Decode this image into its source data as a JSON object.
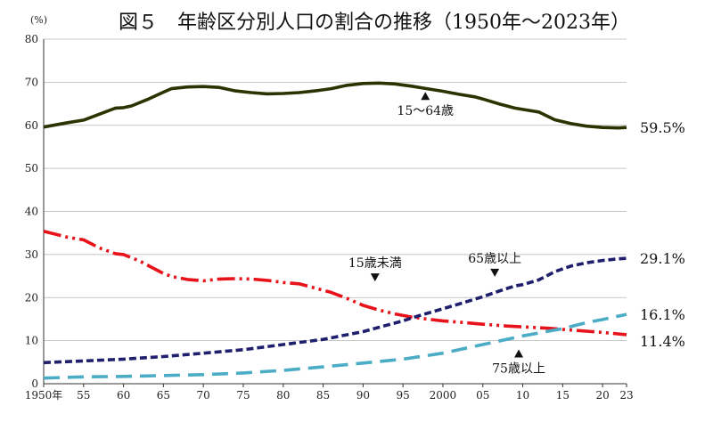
{
  "chart_data": {
    "type": "line",
    "title": "図５　年齢区分別人口の割合の推移（1950年～2023年）",
    "y_unit": "(%)",
    "ylim": [
      0,
      80
    ],
    "y_ticks": [
      0,
      10,
      20,
      30,
      40,
      50,
      60,
      70,
      80
    ],
    "x_range": [
      1950,
      2023
    ],
    "x_ticks": [
      {
        "x": 1950,
        "label": "1950年"
      },
      {
        "x": 1955,
        "label": "55"
      },
      {
        "x": 1960,
        "label": "60"
      },
      {
        "x": 1965,
        "label": "65"
      },
      {
        "x": 1970,
        "label": "70"
      },
      {
        "x": 1975,
        "label": "75"
      },
      {
        "x": 1980,
        "label": "80"
      },
      {
        "x": 1985,
        "label": "85"
      },
      {
        "x": 1990,
        "label": "90"
      },
      {
        "x": 1995,
        "label": "95"
      },
      {
        "x": 2000,
        "label": "2000"
      },
      {
        "x": 2005,
        "label": "05"
      },
      {
        "x": 2010,
        "label": "10"
      },
      {
        "x": 2015,
        "label": "15"
      },
      {
        "x": 2020,
        "label": "20"
      },
      {
        "x": 2023,
        "label": "23"
      }
    ],
    "grid": "horizontal",
    "series": [
      {
        "name": "15～64歳",
        "color": "#2b3300",
        "dash": "solid",
        "end_label": "59.5%",
        "points": [
          [
            1950,
            59.6
          ],
          [
            1953,
            60.6
          ],
          [
            1955,
            61.2
          ],
          [
            1957,
            62.6
          ],
          [
            1959,
            64.0
          ],
          [
            1960,
            64.1
          ],
          [
            1961,
            64.5
          ],
          [
            1963,
            66.0
          ],
          [
            1965,
            67.7
          ],
          [
            1966,
            68.5
          ],
          [
            1968,
            68.9
          ],
          [
            1970,
            69.0
          ],
          [
            1972,
            68.8
          ],
          [
            1974,
            68.0
          ],
          [
            1976,
            67.6
          ],
          [
            1978,
            67.3
          ],
          [
            1980,
            67.4
          ],
          [
            1982,
            67.6
          ],
          [
            1984,
            68.0
          ],
          [
            1986,
            68.5
          ],
          [
            1988,
            69.3
          ],
          [
            1990,
            69.7
          ],
          [
            1992,
            69.8
          ],
          [
            1994,
            69.6
          ],
          [
            1996,
            69.1
          ],
          [
            1998,
            68.5
          ],
          [
            2000,
            67.9
          ],
          [
            2002,
            67.2
          ],
          [
            2004,
            66.6
          ],
          [
            2005,
            66.1
          ],
          [
            2007,
            65.0
          ],
          [
            2009,
            64.0
          ],
          [
            2010,
            63.7
          ],
          [
            2012,
            63.1
          ],
          [
            2014,
            61.3
          ],
          [
            2016,
            60.4
          ],
          [
            2018,
            59.8
          ],
          [
            2020,
            59.5
          ],
          [
            2022,
            59.4
          ],
          [
            2023,
            59.5
          ]
        ]
      },
      {
        "name": "15歳未満",
        "color": "#e8121b",
        "dash": "dashdotdot",
        "end_label": "11.4%",
        "points": [
          [
            1950,
            35.4
          ],
          [
            1953,
            34.0
          ],
          [
            1955,
            33.4
          ],
          [
            1957,
            31.5
          ],
          [
            1959,
            30.2
          ],
          [
            1960,
            30.0
          ],
          [
            1962,
            28.5
          ],
          [
            1965,
            25.6
          ],
          [
            1966,
            24.9
          ],
          [
            1968,
            24.2
          ],
          [
            1970,
            23.9
          ],
          [
            1972,
            24.3
          ],
          [
            1974,
            24.4
          ],
          [
            1976,
            24.3
          ],
          [
            1978,
            24.0
          ],
          [
            1980,
            23.5
          ],
          [
            1982,
            23.2
          ],
          [
            1984,
            22.2
          ],
          [
            1986,
            21.2
          ],
          [
            1988,
            19.8
          ],
          [
            1990,
            18.2
          ],
          [
            1992,
            17.1
          ],
          [
            1994,
            16.2
          ],
          [
            1996,
            15.5
          ],
          [
            1998,
            15.0
          ],
          [
            2000,
            14.6
          ],
          [
            2002,
            14.3
          ],
          [
            2005,
            13.8
          ],
          [
            2008,
            13.4
          ],
          [
            2010,
            13.2
          ],
          [
            2013,
            12.9
          ],
          [
            2015,
            12.6
          ],
          [
            2018,
            12.2
          ],
          [
            2020,
            11.9
          ],
          [
            2023,
            11.4
          ]
        ]
      },
      {
        "name": "65歳以上",
        "color": "#1f1f6e",
        "dash": "dash",
        "end_label": "29.1%",
        "points": [
          [
            1950,
            4.9
          ],
          [
            1955,
            5.3
          ],
          [
            1960,
            5.7
          ],
          [
            1965,
            6.3
          ],
          [
            1970,
            7.1
          ],
          [
            1975,
            7.9
          ],
          [
            1980,
            9.1
          ],
          [
            1985,
            10.3
          ],
          [
            1990,
            12.1
          ],
          [
            1992,
            13.1
          ],
          [
            1995,
            14.6
          ],
          [
            1997,
            15.8
          ],
          [
            2000,
            17.4
          ],
          [
            2002,
            18.5
          ],
          [
            2005,
            20.2
          ],
          [
            2007,
            21.5
          ],
          [
            2009,
            22.7
          ],
          [
            2010,
            23.0
          ],
          [
            2012,
            24.1
          ],
          [
            2014,
            26.0
          ],
          [
            2016,
            27.3
          ],
          [
            2018,
            28.1
          ],
          [
            2020,
            28.6
          ],
          [
            2022,
            29.0
          ],
          [
            2023,
            29.1
          ]
        ]
      },
      {
        "name": "75歳以上",
        "color": "#4bacc6",
        "dash": "longdash",
        "end_label": "16.1%",
        "points": [
          [
            1950,
            1.3
          ],
          [
            1955,
            1.6
          ],
          [
            1960,
            1.7
          ],
          [
            1965,
            1.9
          ],
          [
            1970,
            2.1
          ],
          [
            1975,
            2.5
          ],
          [
            1980,
            3.1
          ],
          [
            1985,
            3.9
          ],
          [
            1990,
            4.8
          ],
          [
            1995,
            5.7
          ],
          [
            2000,
            7.1
          ],
          [
            2005,
            9.1
          ],
          [
            2010,
            11.1
          ],
          [
            2015,
            12.8
          ],
          [
            2018,
            14.2
          ],
          [
            2020,
            14.9
          ],
          [
            2023,
            16.1
          ]
        ]
      }
    ],
    "annotations": [
      {
        "text": "15～64歳",
        "series": "15～64歳",
        "x": 1997.8,
        "y": 69.0,
        "side": "below"
      },
      {
        "text": "15歳未満",
        "series": "15歳未満",
        "x": 1991.5,
        "y": 22.5,
        "side": "above"
      },
      {
        "text": "65歳以上",
        "series": "65歳以上",
        "x": 2006.5,
        "y": 23.6,
        "side": "above"
      },
      {
        "text": "75歳以上",
        "series": "75歳以上",
        "x": 2009.5,
        "y": 9.2,
        "side": "below"
      }
    ]
  }
}
